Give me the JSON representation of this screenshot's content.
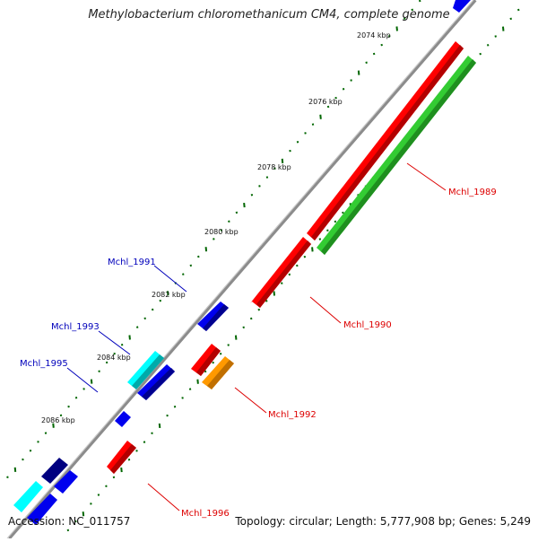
{
  "title": "Methylobacterium chloromethanicum CM4, complete genome",
  "footer": {
    "accession": "Accession: NC_011757",
    "summary": "Topology: circular; Length: 5,777,908 bp; Genes: 5,249"
  },
  "colors": {
    "backbone": "#8c8c8c",
    "red": "#ff0000",
    "green": "#33cc33",
    "blue": "#0000ee",
    "navy": "#000080",
    "cyan": "#00ffff",
    "orange": "#ff9900",
    "tick": "#006600",
    "label_red": "#dd0000",
    "label_blue": "#0000bb"
  },
  "scale_labels": [
    "2074 kbp",
    "2076 kbp",
    "2078 kbp",
    "2080 kbp",
    "2082 kbp",
    "2084 kbp",
    "2086 kbp"
  ],
  "gene_labels": [
    {
      "text": "Mchl_1989",
      "color": "red"
    },
    {
      "text": "Mchl_1990",
      "color": "red"
    },
    {
      "text": "Mchl_1991",
      "color": "blue"
    },
    {
      "text": "Mchl_1992",
      "color": "red"
    },
    {
      "text": "Mchl_1993",
      "color": "blue"
    },
    {
      "text": "Mchl_1995",
      "color": "blue"
    },
    {
      "text": "Mchl_1996",
      "color": "red"
    }
  ]
}
